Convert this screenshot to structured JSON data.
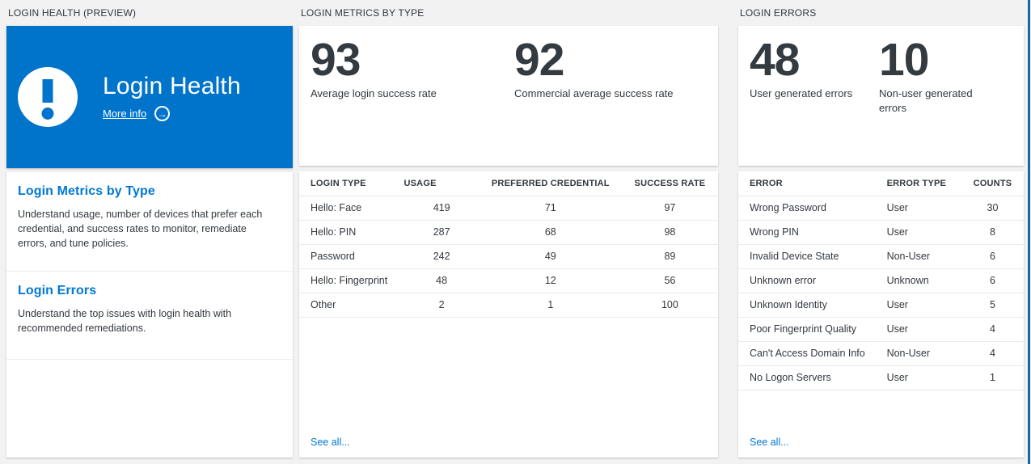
{
  "colors": {
    "page_bg": "#f2f2f2",
    "accent": "#0078d4",
    "hero_blue": "#0074cb",
    "stat_number": "#333a40",
    "blade_edge": "#1a6a9c"
  },
  "health": {
    "section_title": "LOGIN HEALTH (PREVIEW)",
    "hero": {
      "title": "Login Health",
      "more_info_label": "More info",
      "arrow_glyph": "→",
      "icon": "exclamation-icon"
    },
    "items": [
      {
        "title": "Login Metrics by Type",
        "description": "Understand usage, number of devices that prefer each credential, and success rates to monitor, remediate errors, and tune policies."
      },
      {
        "title": "Login Errors",
        "description": "Understand the top issues with login health with recommended remediations."
      }
    ]
  },
  "metrics": {
    "section_title": "LOGIN METRICS BY TYPE",
    "stats": [
      {
        "value": "93",
        "label": "Average login success rate"
      },
      {
        "value": "92",
        "label": "Commercial average success rate"
      }
    ],
    "table": {
      "columns": [
        "LOGIN TYPE",
        "USAGE",
        "PREFERRED CREDENTIAL",
        "SUCCESS RATE"
      ],
      "rows": [
        [
          "Hello: Face",
          "419",
          "71",
          "97"
        ],
        [
          "Hello: PIN",
          "287",
          "68",
          "98"
        ],
        [
          "Password",
          "242",
          "49",
          "89"
        ],
        [
          "Hello: Fingerprint",
          "48",
          "12",
          "56"
        ],
        [
          "Other",
          "2",
          "1",
          "100"
        ]
      ]
    },
    "see_all_label": "See all..."
  },
  "errors": {
    "section_title": "LOGIN ERRORS",
    "stats": [
      {
        "value": "48",
        "label": "User generated errors"
      },
      {
        "value": "10",
        "label": "Non-user generated errors"
      }
    ],
    "table": {
      "columns": [
        "ERROR",
        "ERROR TYPE",
        "COUNTS"
      ],
      "rows": [
        [
          "Wrong Password",
          "User",
          "30"
        ],
        [
          "Wrong PIN",
          "User",
          "8"
        ],
        [
          "Invalid Device State",
          "Non-User",
          "6"
        ],
        [
          "Unknown error",
          "Unknown",
          "6"
        ],
        [
          "Unknown Identity",
          "User",
          "5"
        ],
        [
          "Poor Fingerprint Quality",
          "User",
          "4"
        ],
        [
          "Can't Access Domain Info",
          "Non-User",
          "4"
        ],
        [
          "No Logon Servers",
          "User",
          "1"
        ]
      ]
    },
    "see_all_label": "See all..."
  }
}
